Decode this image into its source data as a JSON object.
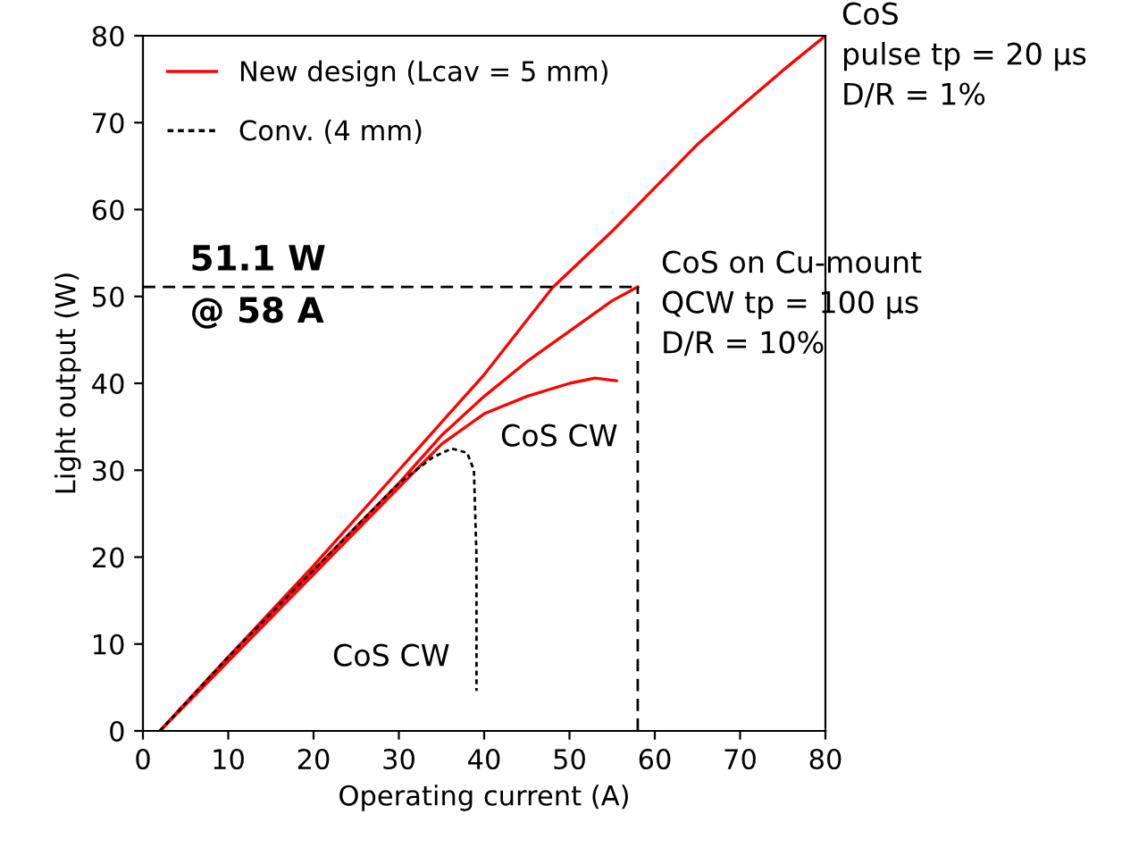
{
  "chart_data": {
    "type": "line",
    "xlabel": "Operating current (A)",
    "ylabel": "Light output (W)",
    "xlim": [
      0,
      80
    ],
    "ylim": [
      0,
      80
    ],
    "xticks": [
      0,
      10,
      20,
      30,
      40,
      50,
      60,
      70,
      80
    ],
    "yticks": [
      0,
      10,
      20,
      30,
      40,
      50,
      60,
      70,
      80
    ],
    "grid": false,
    "legend": "top left",
    "series": [
      {
        "name": "New design (Lcav = 5 mm)",
        "color": "#ff0000",
        "line_style": "solid",
        "x": [
          2,
          10,
          20,
          30,
          40,
          48,
          55,
          60,
          65,
          70,
          75,
          80
        ],
        "values": [
          0,
          8.5,
          19,
          30,
          41,
          51,
          57.5,
          62.5,
          67.5,
          71.8,
          76,
          80
        ]
      },
      {
        "color": "#ff0000",
        "line_style": "solid",
        "x": [
          2,
          10,
          20,
          30,
          35,
          40,
          45,
          50,
          55,
          58
        ],
        "values": [
          0,
          8.5,
          18.5,
          28.5,
          34,
          38.5,
          42.5,
          46,
          49.5,
          51.1
        ]
      },
      {
        "color": "#ff0000",
        "line_style": "solid",
        "x": [
          2,
          10,
          20,
          30,
          35,
          40,
          45,
          50,
          53,
          55.5
        ],
        "values": [
          0,
          8,
          18,
          28,
          33,
          36.5,
          38.5,
          40,
          40.6,
          40.3
        ]
      },
      {
        "name": "Conv. (4 mm)",
        "color": "#000000",
        "line_style": "dotted",
        "x": [
          2,
          10,
          20,
          30,
          34,
          36.2,
          38,
          38.8,
          39.1,
          39.1
        ],
        "values": [
          0,
          8.5,
          18.5,
          28.5,
          31.5,
          32.5,
          32,
          30,
          20,
          4.6
        ]
      }
    ],
    "ref_lines": [
      {
        "axis": "y",
        "value": 51.1,
        "label": "51.1 W\n@ 58 A",
        "color": "#000000",
        "line_style": "dashed"
      },
      {
        "axis": "x",
        "value": 58,
        "color": "#000000",
        "line_style": "dashed"
      }
    ],
    "annotations": [
      "CoS\npulse tp = 20 µs\nD/R = 1%",
      "CoS on Cu-mount\nQCW tp = 100 µs\nD/R = 10%",
      "CoS CW",
      "CoS CW"
    ]
  }
}
